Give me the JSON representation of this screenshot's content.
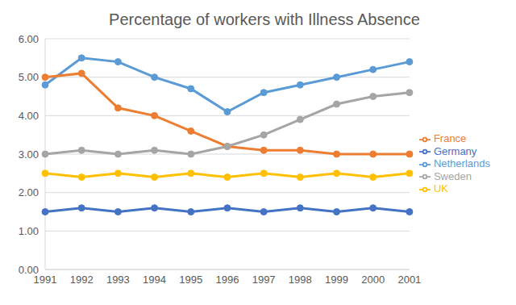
{
  "chart_data": {
    "type": "line",
    "title": "Percentage of workers with Illness Absence",
    "categories": [
      "1991",
      "1992",
      "1993",
      "1994",
      "1995",
      "1996",
      "1997",
      "1998",
      "1999",
      "2000",
      "2001"
    ],
    "series": [
      {
        "name": "Netherlands",
        "color": "#5b9bd5",
        "values": [
          4.8,
          5.5,
          5.4,
          5.0,
          4.7,
          4.1,
          4.6,
          4.8,
          5.0,
          5.2,
          5.4
        ]
      },
      {
        "name": "France",
        "color": "#ed7d31",
        "values": [
          5.0,
          5.1,
          4.2,
          4.0,
          3.6,
          3.2,
          3.1,
          3.1,
          3.0,
          3.0,
          3.0
        ]
      },
      {
        "name": "Sweden",
        "color": "#a5a5a5",
        "values": [
          3.0,
          3.1,
          3.0,
          3.1,
          3.0,
          3.2,
          3.5,
          3.9,
          4.3,
          4.5,
          4.6
        ]
      },
      {
        "name": "UK",
        "color": "#ffc000",
        "values": [
          2.5,
          2.4,
          2.5,
          2.4,
          2.5,
          2.4,
          2.5,
          2.4,
          2.5,
          2.4,
          2.5
        ]
      },
      {
        "name": "Germany",
        "color": "#4472c4",
        "values": [
          1.5,
          1.6,
          1.5,
          1.6,
          1.5,
          1.6,
          1.5,
          1.6,
          1.5,
          1.6,
          1.5
        ]
      }
    ],
    "ylim": [
      0,
      6
    ],
    "yticks": [
      {
        "value": 0,
        "label": "0.00"
      },
      {
        "value": 1,
        "label": "1.00"
      },
      {
        "value": 2,
        "label": "2.00"
      },
      {
        "value": 3,
        "label": "3.00"
      },
      {
        "value": 4,
        "label": "4.00"
      },
      {
        "value": 5,
        "label": "5.00"
      },
      {
        "value": 6,
        "label": "6.00"
      }
    ],
    "grid": true,
    "legend": "right",
    "marker": "circle"
  }
}
